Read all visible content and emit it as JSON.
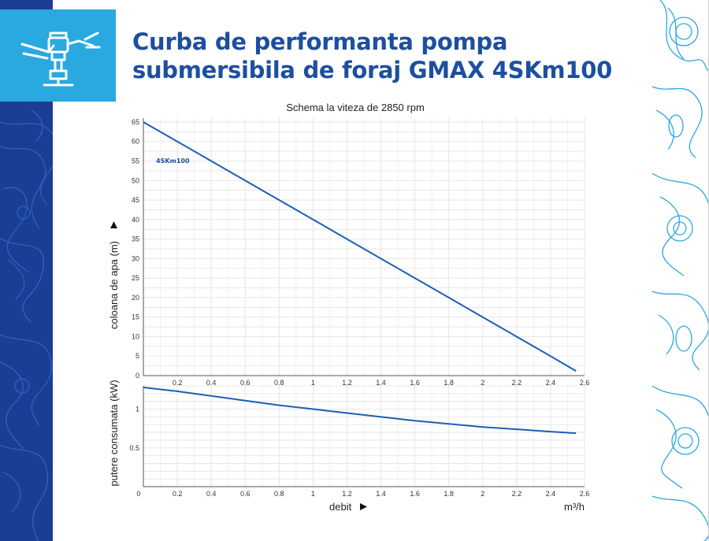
{
  "header": {
    "title_line1": "Curba de performanta pompa",
    "title_line2": "submersibila de foraj GMAX 4SKm100",
    "icon": "submersible-pump-icon"
  },
  "colors": {
    "title": "#1d4fa0",
    "icon_box": "#2aa8e0",
    "left_band": "#1a3e93",
    "contour_right": "#2aa8e0",
    "curve": "#1d5fb5"
  },
  "chart_data": [
    {
      "type": "line",
      "title": "Schema la viteza de 2850 rpm",
      "ylabel": "coloana de apa (m)",
      "xlim": [
        0,
        2.6
      ],
      "ylim": [
        0,
        66
      ],
      "x_ticks": [
        "0.2",
        "0.4",
        "0.6",
        "0.8",
        "1",
        "1.2",
        "1.4",
        "1.6",
        "1.8",
        "2",
        "2.2",
        "2.4",
        "2.6"
      ],
      "y_ticks": [
        "0",
        "5",
        "10",
        "15",
        "20",
        "25",
        "30",
        "35",
        "40",
        "45",
        "50",
        "55",
        "60",
        "65"
      ],
      "grid": true,
      "series": [
        {
          "name": "4SKm100",
          "x": [
            0,
            0.2,
            0.4,
            0.6,
            0.8,
            1.0,
            1.2,
            1.4,
            1.6,
            1.8,
            2.0,
            2.2,
            2.4,
            2.55
          ],
          "y": [
            65,
            60,
            55,
            50,
            45,
            40,
            35,
            30,
            25,
            20,
            15,
            10,
            5,
            1.2
          ]
        }
      ]
    },
    {
      "type": "line",
      "ylabel": "putere consumata (kW)",
      "xlabel": "debit",
      "xunit": "m³/h",
      "xlim": [
        0,
        2.6
      ],
      "ylim": [
        0,
        1.3
      ],
      "x_ticks": [
        "0",
        "0.2",
        "0.4",
        "0.6",
        "0.8",
        "1",
        "1.2",
        "1.4",
        "1.6",
        "1.8",
        "2",
        "2.2",
        "2.4",
        "2.6"
      ],
      "y_ticks": [
        "0.5",
        "1"
      ],
      "grid": true,
      "series": [
        {
          "x": [
            0,
            0.2,
            0.4,
            0.6,
            0.8,
            1.0,
            1.2,
            1.4,
            1.6,
            1.8,
            2.0,
            2.2,
            2.4,
            2.55
          ],
          "y": [
            1.28,
            1.23,
            1.17,
            1.11,
            1.05,
            1.0,
            0.95,
            0.9,
            0.85,
            0.81,
            0.77,
            0.74,
            0.71,
            0.69
          ]
        }
      ]
    }
  ]
}
